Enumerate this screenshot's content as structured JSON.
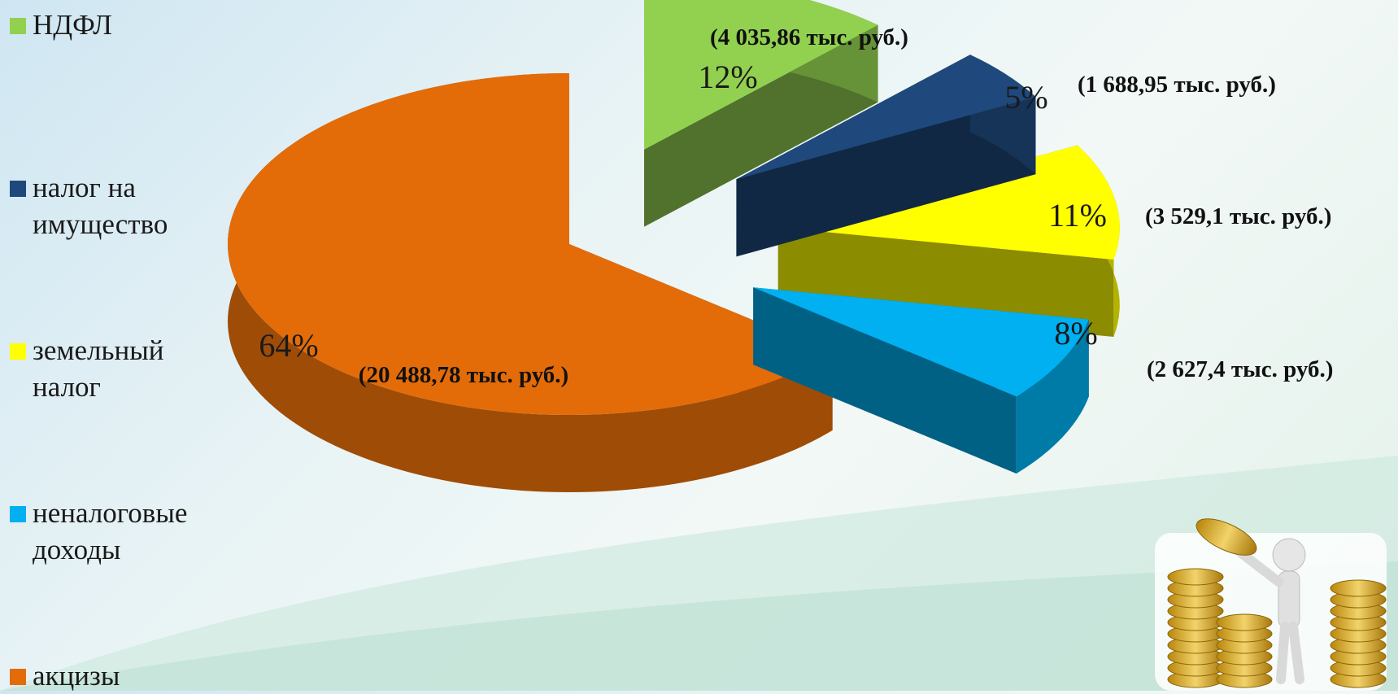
{
  "chart_data": {
    "type": "pie",
    "style": "3d-exploded",
    "title": "",
    "legend_position": "left",
    "series": [
      {
        "name": "НДФЛ",
        "percent": 12,
        "percent_label": "12%",
        "value": 4035.86,
        "value_label": "(4 035,86 тыс. руб.)",
        "color": "#92d050"
      },
      {
        "name": "налог на имущество",
        "percent": 5,
        "percent_label": "5%",
        "value": 1688.95,
        "value_label": "(1 688,95 тыс. руб.)",
        "color": "#1f497d"
      },
      {
        "name": "земельный налог",
        "percent": 11,
        "percent_label": "11%",
        "value": 3529.1,
        "value_label": "(3 529,1 тыс. руб.)",
        "color": "#ffff00"
      },
      {
        "name": "неналоговые доходы",
        "percent": 8,
        "percent_label": "8%",
        "value": 2627.4,
        "value_label": "(2 627,4  тыс. руб.)",
        "color": "#00b0f0"
      },
      {
        "name": "акцизы",
        "percent": 64,
        "percent_label": "64%",
        "value": 20488.78,
        "value_label": "(20 488,78 тыс. руб.)",
        "color": "#e36c09"
      }
    ]
  },
  "decoration": {
    "icon": "coin-stacks-figure-icon"
  }
}
